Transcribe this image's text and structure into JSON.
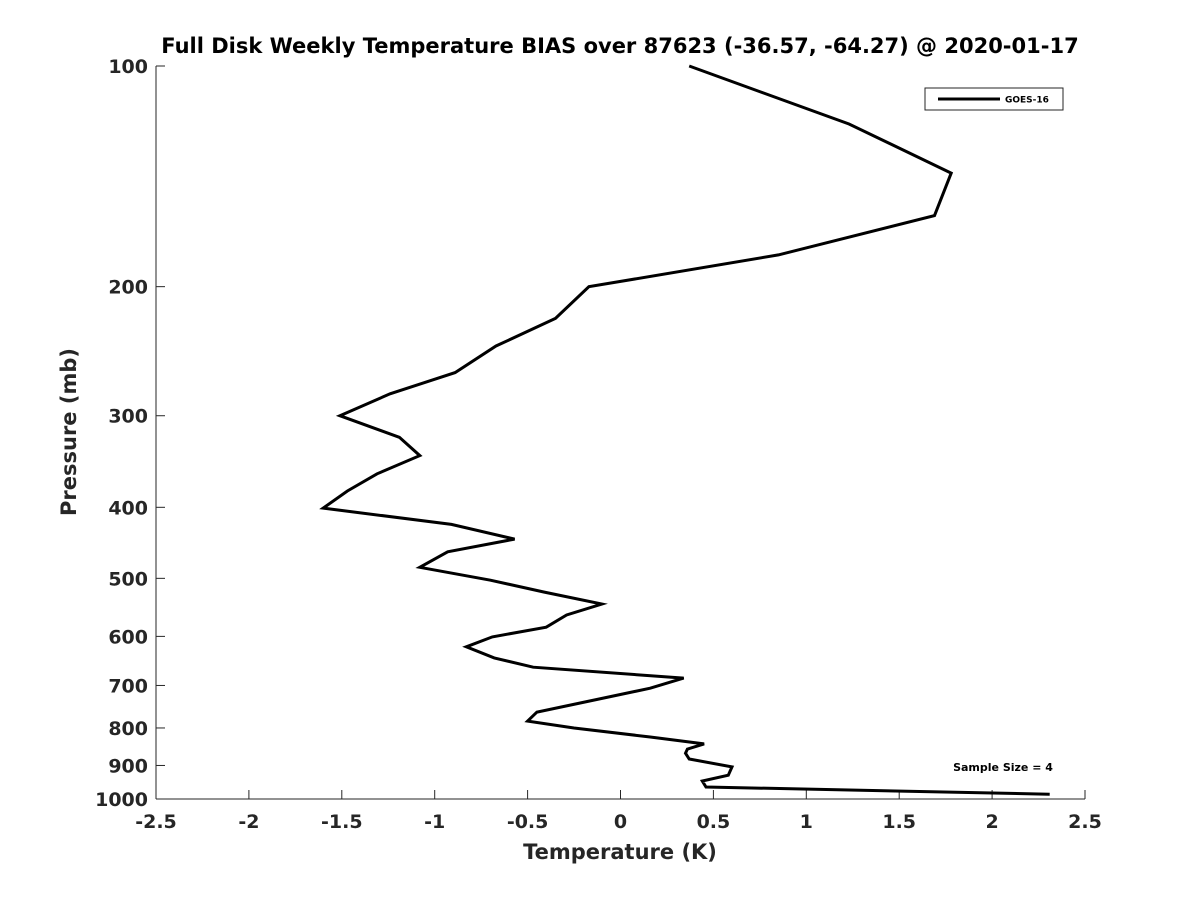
{
  "chart_data": {
    "type": "line",
    "title": "Full Disk Weekly Temperature BIAS over 87623 (-36.57, -64.27) @ 2020-01-17",
    "xlabel": "Temperature (K)",
    "ylabel": "Pressure (mb)",
    "xlim": [
      -2.5,
      2.5
    ],
    "ylim": [
      100,
      1000
    ],
    "yscale": "log",
    "y_reversed": true,
    "xticks": [
      -2.5,
      -2,
      -1.5,
      -1,
      -0.5,
      0,
      0.5,
      1,
      1.5,
      2,
      2.5
    ],
    "xtick_labels": [
      "-2.5",
      "-2",
      "-1.5",
      "-1",
      "-0.5",
      "0",
      "0.5",
      "1",
      "1.5",
      "2",
      "2.5"
    ],
    "yticks": [
      100,
      200,
      300,
      400,
      500,
      600,
      700,
      800,
      900,
      1000
    ],
    "ytick_labels": [
      "100",
      "200",
      "300",
      "400",
      "500",
      "600",
      "700",
      "800",
      "900",
      "1000"
    ],
    "grid": false,
    "legend_position": "top-right",
    "annotation": "Sample Size = 4",
    "line_color": "#000000",
    "series": [
      {
        "name": "GOES-16",
        "pressure": [
          100,
          120,
          140,
          160,
          181,
          200,
          221,
          241,
          262,
          280,
          300,
          321,
          340,
          360,
          380,
          401,
          422,
          442,
          460,
          483,
          503,
          522,
          542,
          561,
          583,
          601,
          620,
          642,
          661,
          684,
          706,
          740,
          761,
          783,
          800,
          823,
          841,
          855,
          866,
          882,
          904,
          928,
          945,
          963,
          985
        ],
        "temperature": [
          0.37,
          1.23,
          1.78,
          1.69,
          0.85,
          -0.17,
          -0.35,
          -0.67,
          -0.89,
          -1.24,
          -1.51,
          -1.19,
          -1.08,
          -1.31,
          -1.47,
          -1.6,
          -0.91,
          -0.57,
          -0.93,
          -1.08,
          -0.7,
          -0.41,
          -0.1,
          -0.29,
          -0.4,
          -0.69,
          -0.83,
          -0.68,
          -0.47,
          0.34,
          0.16,
          -0.22,
          -0.45,
          -0.5,
          -0.25,
          0.16,
          0.45,
          0.36,
          0.35,
          0.37,
          0.6,
          0.58,
          0.44,
          0.46,
          2.31
        ]
      }
    ]
  }
}
